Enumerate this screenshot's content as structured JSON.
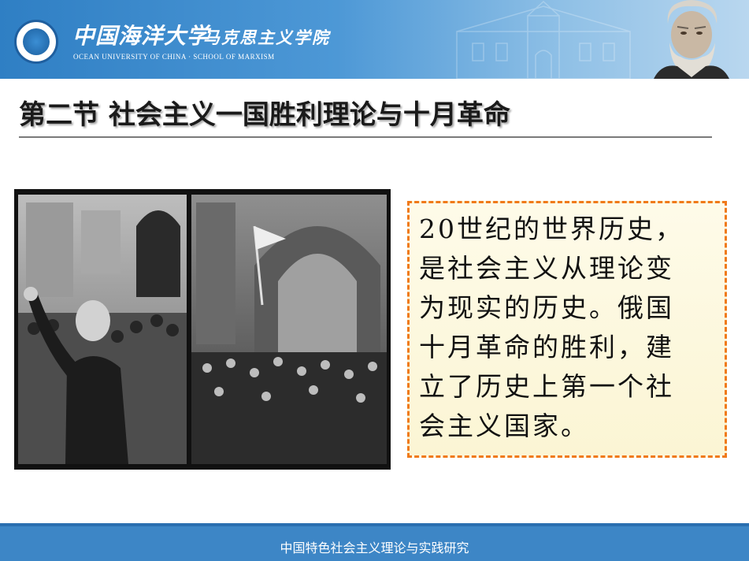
{
  "header": {
    "university_cn": "中国海洋大学",
    "school_cn": "马克思主义学院",
    "english_line": "OCEAN UNIVERSITY OF CHINA  ·  SCHOOL OF MARXISM"
  },
  "slide": {
    "title": "第二节  社会主义一国胜利理论与十月革命",
    "body_lines": [
      "20世纪的世界历史，",
      "是社会主义从理论变",
      "为现实的历史。俄国",
      "十月革命的胜利，建",
      "立了历史上第一个社",
      "会主义国家。"
    ]
  },
  "footer": {
    "text": "中国特色社会主义理论与实践研究"
  },
  "colors": {
    "banner_blue": "#3d86c6",
    "dashed_border_orange": "#f07a1a",
    "box_fill": "#fdf8dd"
  }
}
